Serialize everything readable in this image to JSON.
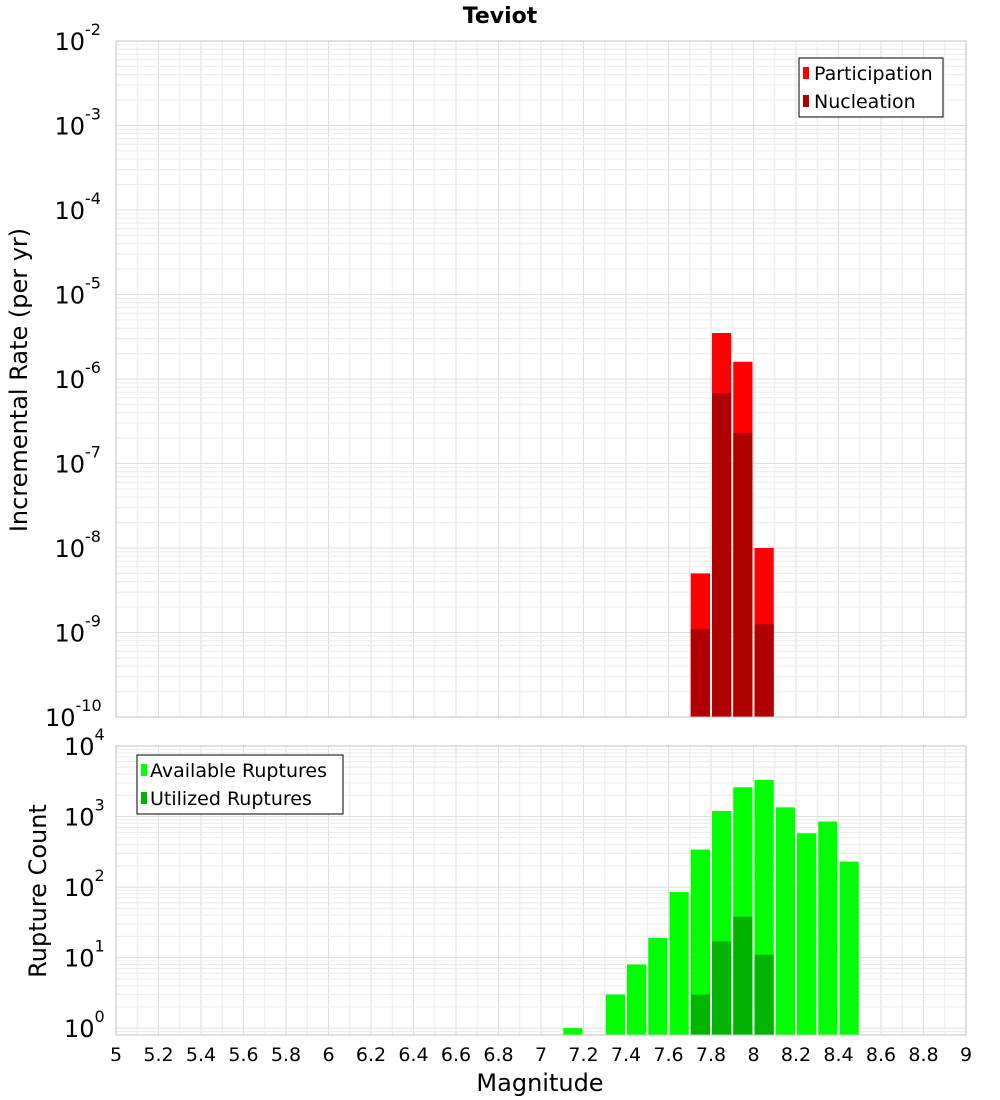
{
  "title": "Teviot",
  "colors": {
    "participation": "#ff0000",
    "nucleation": "#b00000",
    "available": "#00ff00",
    "utilized": "#00b400",
    "grid_major": "#dedede",
    "grid_minor": "#ececec",
    "frame": "#c0c0c0"
  },
  "chart_data": [
    {
      "type": "bar",
      "title": "Teviot",
      "xlabel": "",
      "ylabel": "Incremental Rate (per yr)",
      "yscale": "log",
      "ylim": [
        1e-10,
        0.01
      ],
      "y_tick_exponents": [
        "-10",
        "-9",
        "-8",
        "-7",
        "-6",
        "-5",
        "-4",
        "-3",
        "-2"
      ],
      "xlim": [
        5,
        9
      ],
      "bin_width": 0.1,
      "legend_position": "top-right",
      "x": [
        7.75,
        7.85,
        7.95,
        8.05
      ],
      "series": [
        {
          "name": "Participation",
          "color": "#ff0000",
          "values": [
            5e-09,
            3.5e-06,
            1.6e-06,
            1e-08
          ]
        },
        {
          "name": "Nucleation",
          "color": "#b00000",
          "values": [
            1.1e-09,
            6.8e-07,
            2.3e-07,
            1.25e-09
          ]
        }
      ]
    },
    {
      "type": "bar",
      "xlabel": "Magnitude",
      "ylabel": "Rupture Count",
      "yscale": "log",
      "ylim": [
        0.8,
        10000
      ],
      "y_tick_exponents": [
        "0",
        "1",
        "2",
        "3",
        "4"
      ],
      "xlim": [
        5,
        9
      ],
      "x_tick_labels": [
        "5",
        "5.2",
        "5.4",
        "5.6",
        "5.8",
        "6",
        "6.2",
        "6.4",
        "6.6",
        "6.8",
        "7",
        "7.2",
        "7.4",
        "7.6",
        "7.8",
        "8",
        "8.2",
        "8.4",
        "8.6",
        "8.8",
        "9"
      ],
      "bin_width": 0.1,
      "legend_position": "top-left",
      "x": [
        7.15,
        7.35,
        7.45,
        7.55,
        7.65,
        7.75,
        7.85,
        7.95,
        8.05,
        8.15,
        8.25,
        8.35,
        8.45
      ],
      "series": [
        {
          "name": "Available Ruptures",
          "color": "#00ff00",
          "values": [
            1,
            3,
            8,
            19,
            85,
            340,
            1200,
            2600,
            3300,
            1350,
            580,
            850,
            230
          ]
        },
        {
          "name": "Utilized Ruptures",
          "color": "#00b400",
          "values": [
            null,
            null,
            null,
            null,
            null,
            3,
            17,
            38,
            11,
            null,
            null,
            null,
            null
          ]
        }
      ]
    }
  ]
}
